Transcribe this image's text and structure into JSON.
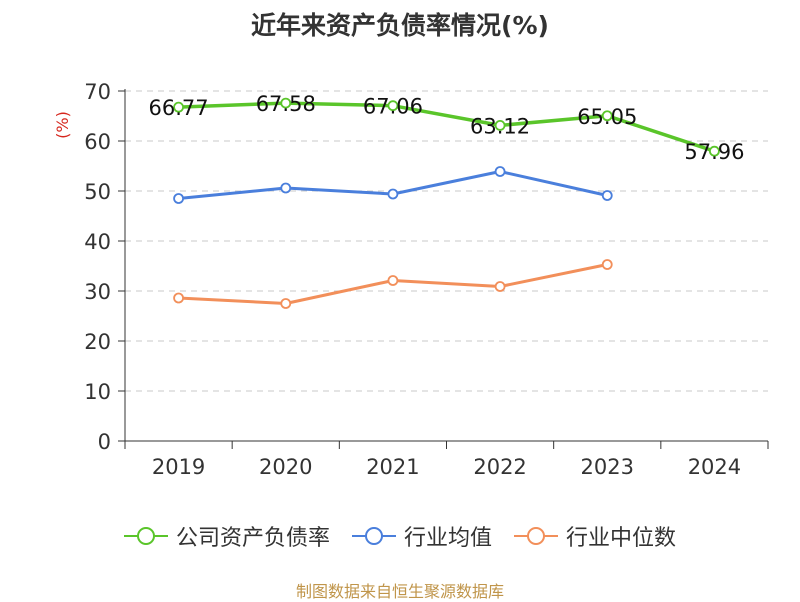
{
  "chart_data": {
    "type": "line",
    "title": "近年来资产负债率情况(%)",
    "ylabel": "(%)",
    "categories": [
      "2019",
      "2020",
      "2021",
      "2022",
      "2023",
      "2024"
    ],
    "ylim": [
      0,
      70
    ],
    "yticks": [
      0,
      10,
      20,
      30,
      40,
      50,
      60,
      70
    ],
    "grid": true,
    "legend_position": "bottom",
    "series": [
      {
        "name": "公司资产负债率",
        "color": "#5ac52a",
        "values": [
          66.77,
          67.58,
          67.06,
          63.12,
          65.05,
          57.96
        ],
        "labels": [
          "66.77",
          "67.58",
          "67.06",
          "63.12",
          "65.05",
          "57.96"
        ]
      },
      {
        "name": "行业均值",
        "color": "#4a7fdc",
        "values": [
          48.5,
          50.6,
          49.4,
          53.9,
          49.1,
          null
        ]
      },
      {
        "name": "行业中位数",
        "color": "#f28f5a",
        "values": [
          28.6,
          27.5,
          32.1,
          30.9,
          35.3,
          null
        ]
      }
    ]
  },
  "source": "制图数据来自恒生聚源数据库"
}
